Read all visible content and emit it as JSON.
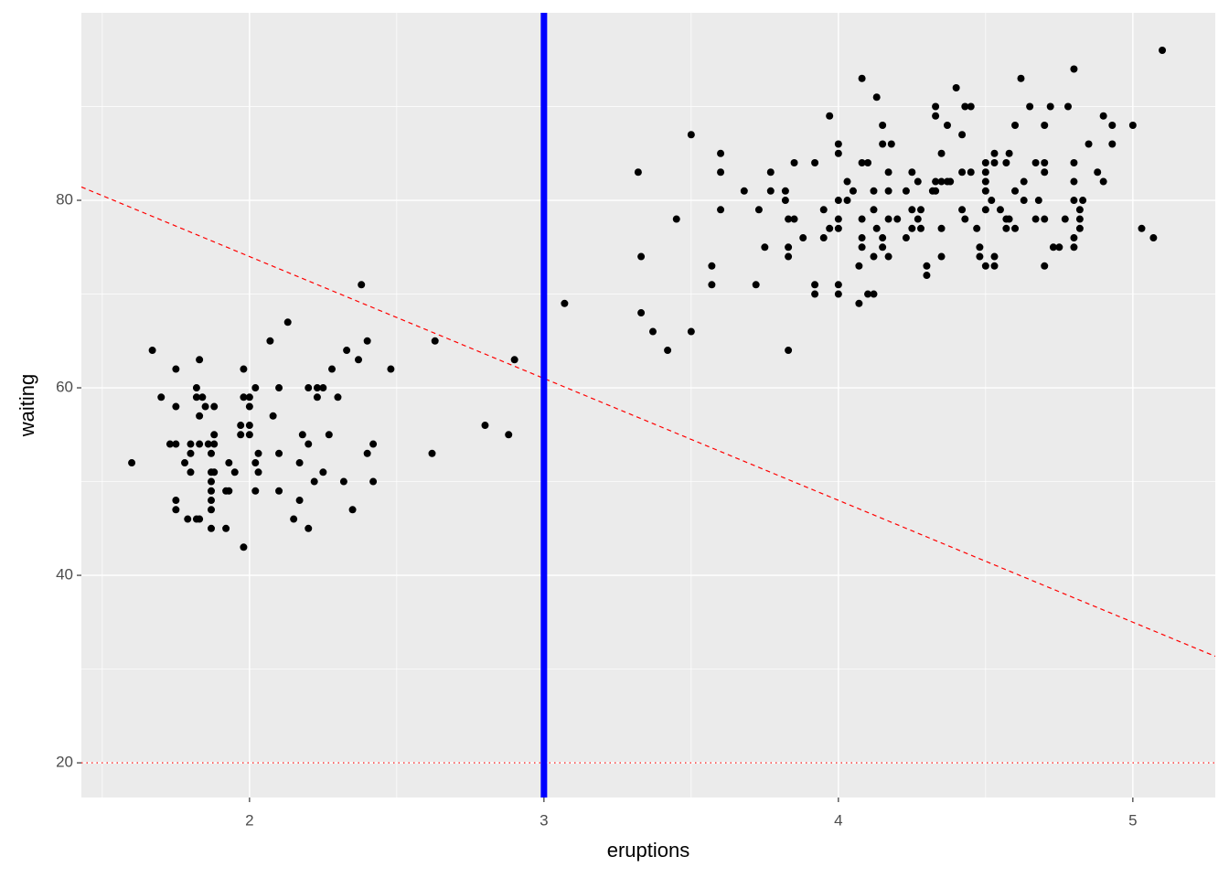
{
  "chart_data": {
    "type": "scatter",
    "x_label": "eruptions",
    "y_label": "waiting",
    "xlim": [
      1.429,
      5.28
    ],
    "ylim": [
      16.3,
      100.0
    ],
    "xticks": [
      2,
      3,
      4,
      5
    ],
    "yticks": [
      20,
      40,
      60,
      80
    ],
    "grid": true,
    "minor_grid": true,
    "panel_color": "#ebebeb",
    "point_color": "#000000",
    "x": [
      1.6,
      1.67,
      1.7,
      1.73,
      1.75,
      1.75,
      1.75,
      1.75,
      1.75,
      1.78,
      1.79,
      1.8,
      1.8,
      1.8,
      1.82,
      1.82,
      1.82,
      1.83,
      1.83,
      1.83,
      1.83,
      1.84,
      1.85,
      1.86,
      1.87,
      1.87,
      1.87,
      1.87,
      1.87,
      1.87,
      1.87,
      1.88,
      1.88,
      1.88,
      1.88,
      1.92,
      1.92,
      1.93,
      1.93,
      1.95,
      1.97,
      1.97,
      1.98,
      1.98,
      1.98,
      2.0,
      2.0,
      2.0,
      2.0,
      2.02,
      2.02,
      2.02,
      2.03,
      2.03,
      2.07,
      2.08,
      2.1,
      2.1,
      2.1,
      2.13,
      2.15,
      2.17,
      2.17,
      2.18,
      2.2,
      2.2,
      2.2,
      2.22,
      2.23,
      2.23,
      2.25,
      2.25,
      2.27,
      2.28,
      2.3,
      2.32,
      2.33,
      2.35,
      2.37,
      2.38,
      2.4,
      2.4,
      2.42,
      2.42,
      2.48,
      2.62,
      2.63,
      2.8,
      2.88,
      2.9,
      3.07,
      3.32,
      3.33,
      3.33,
      3.37,
      3.42,
      3.45,
      3.5,
      3.5,
      3.57,
      3.57,
      3.6,
      3.6,
      3.6,
      3.68,
      3.72,
      3.73,
      3.75,
      3.77,
      3.77,
      3.82,
      3.82,
      3.83,
      3.83,
      3.83,
      3.83,
      3.85,
      3.85,
      3.88,
      3.92,
      3.92,
      3.92,
      3.95,
      3.95,
      3.97,
      3.97,
      4.0,
      4.0,
      4.0,
      4.0,
      4.0,
      4.0,
      4.0,
      4.03,
      4.03,
      4.05,
      4.07,
      4.07,
      4.08,
      4.08,
      4.08,
      4.08,
      4.08,
      4.1,
      4.1,
      4.12,
      4.12,
      4.12,
      4.12,
      4.13,
      4.13,
      4.15,
      4.15,
      4.15,
      4.15,
      4.17,
      4.17,
      4.17,
      4.17,
      4.18,
      4.2,
      4.23,
      4.23,
      4.25,
      4.25,
      4.25,
      4.27,
      4.27,
      4.28,
      4.28,
      4.3,
      4.3,
      4.32,
      4.33,
      4.33,
      4.33,
      4.33,
      4.35,
      4.35,
      4.35,
      4.35,
      4.37,
      4.37,
      4.38,
      4.4,
      4.42,
      4.42,
      4.42,
      4.43,
      4.43,
      4.45,
      4.45,
      4.47,
      4.48,
      4.48,
      4.5,
      4.5,
      4.5,
      4.5,
      4.5,
      4.5,
      4.52,
      4.53,
      4.53,
      4.53,
      4.53,
      4.55,
      4.57,
      4.57,
      4.57,
      4.58,
      4.58,
      4.6,
      4.6,
      4.6,
      4.62,
      4.63,
      4.63,
      4.65,
      4.67,
      4.67,
      4.68,
      4.7,
      4.7,
      4.7,
      4.7,
      4.7,
      4.72,
      4.73,
      4.75,
      4.77,
      4.78,
      4.8,
      4.8,
      4.8,
      4.8,
      4.8,
      4.8,
      4.82,
      4.82,
      4.82,
      4.83,
      4.85,
      4.88,
      4.9,
      4.9,
      4.93,
      4.93,
      5.0,
      5.03,
      5.07,
      5.1
    ],
    "y": [
      52,
      64,
      59,
      54,
      54,
      62,
      58,
      48,
      47,
      52,
      46,
      54,
      51,
      53,
      60,
      59,
      46,
      63,
      57,
      46,
      54,
      59,
      58,
      54,
      53,
      51,
      50,
      49,
      48,
      47,
      45,
      58,
      55,
      54,
      51,
      49,
      45,
      52,
      49,
      51,
      56,
      55,
      62,
      59,
      43,
      59,
      58,
      56,
      55,
      60,
      52,
      49,
      53,
      51,
      65,
      57,
      60,
      53,
      49,
      67,
      46,
      52,
      48,
      55,
      60,
      54,
      45,
      50,
      60,
      59,
      60,
      51,
      55,
      62,
      59,
      50,
      64,
      47,
      63,
      71,
      65,
      53,
      54,
      50,
      62,
      53,
      65,
      56,
      55,
      63,
      69,
      83,
      74,
      68,
      66,
      64,
      78,
      87,
      66,
      73,
      71,
      85,
      83,
      79,
      81,
      71,
      79,
      75,
      83,
      81,
      80,
      81,
      78,
      75,
      74,
      64,
      84,
      78,
      76,
      84,
      71,
      70,
      79,
      76,
      89,
      77,
      86,
      85,
      80,
      78,
      77,
      71,
      70,
      82,
      80,
      81,
      69,
      73,
      93,
      84,
      78,
      76,
      75,
      70,
      84,
      74,
      70,
      79,
      81,
      77,
      91,
      75,
      76,
      88,
      86,
      83,
      81,
      78,
      74,
      86,
      78,
      81,
      76,
      83,
      79,
      77,
      82,
      78,
      79,
      77,
      73,
      72,
      81,
      90,
      89,
      82,
      81,
      85,
      82,
      77,
      74,
      88,
      82,
      82,
      92,
      87,
      83,
      79,
      90,
      78,
      83,
      90,
      77,
      75,
      74,
      84,
      83,
      82,
      81,
      79,
      73,
      80,
      85,
      84,
      74,
      73,
      79,
      84,
      78,
      77,
      85,
      78,
      77,
      88,
      81,
      93,
      82,
      80,
      90,
      84,
      78,
      80,
      88,
      84,
      83,
      78,
      73,
      90,
      75,
      75,
      78,
      90,
      80,
      94,
      84,
      82,
      76,
      75,
      79,
      78,
      77,
      80,
      86,
      83,
      89,
      82,
      88,
      86,
      88,
      77,
      76,
      96
    ],
    "vline": {
      "x": 3,
      "color": "#0000ff"
    },
    "hline": {
      "y": 20,
      "color": "#ff0000"
    },
    "abline": {
      "intercept": 100,
      "slope": -13,
      "color": "#ff0000"
    }
  }
}
